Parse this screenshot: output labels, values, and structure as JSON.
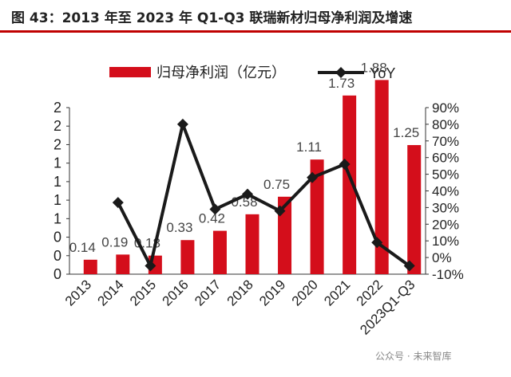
{
  "title": "图 43：2013 年至 2023 年 Q1-Q3 联瑞新材归母净利润及增速",
  "watermark": "公众号 · 未来智库",
  "colors": {
    "bar": "#d40e1b",
    "line": "#1a1a1a",
    "title_rule": "#c00000"
  },
  "chart_data": {
    "type": "bar+line",
    "title": "",
    "categories": [
      "2013",
      "2014",
      "2015",
      "2016",
      "2017",
      "2018",
      "2019",
      "2020",
      "2021",
      "2022",
      "2023Q1-Q3"
    ],
    "series": [
      {
        "name": "归母净利润（亿元）",
        "type": "bar",
        "axis": "left",
        "values": [
          0.14,
          0.19,
          0.18,
          0.33,
          0.42,
          0.58,
          0.75,
          1.11,
          1.73,
          1.88,
          1.25
        ],
        "labels": [
          "0.14",
          "0.19",
          "0.18",
          "0.33",
          "0.42",
          "0.58",
          "0.75",
          "1.11",
          "1.73",
          "1.88",
          "1.25"
        ]
      },
      {
        "name": "YoY",
        "type": "line",
        "axis": "right",
        "values": [
          null,
          33,
          -5,
          80,
          29,
          38,
          28,
          48,
          56,
          9,
          -5
        ]
      }
    ],
    "y_left": {
      "min": 0,
      "max": 2,
      "tick_labels": [
        "0",
        "0",
        "0",
        "1",
        "1",
        "1",
        "1",
        "2",
        "2",
        "2"
      ]
    },
    "y_right": {
      "min": -10,
      "max": 90,
      "step": 10,
      "unit": "%",
      "tick_labels": [
        "-10%",
        "0%",
        "10%",
        "20%",
        "30%",
        "40%",
        "50%",
        "60%",
        "70%",
        "80%",
        "90%"
      ]
    },
    "legend": {
      "position": "top-center"
    },
    "grid": false
  }
}
